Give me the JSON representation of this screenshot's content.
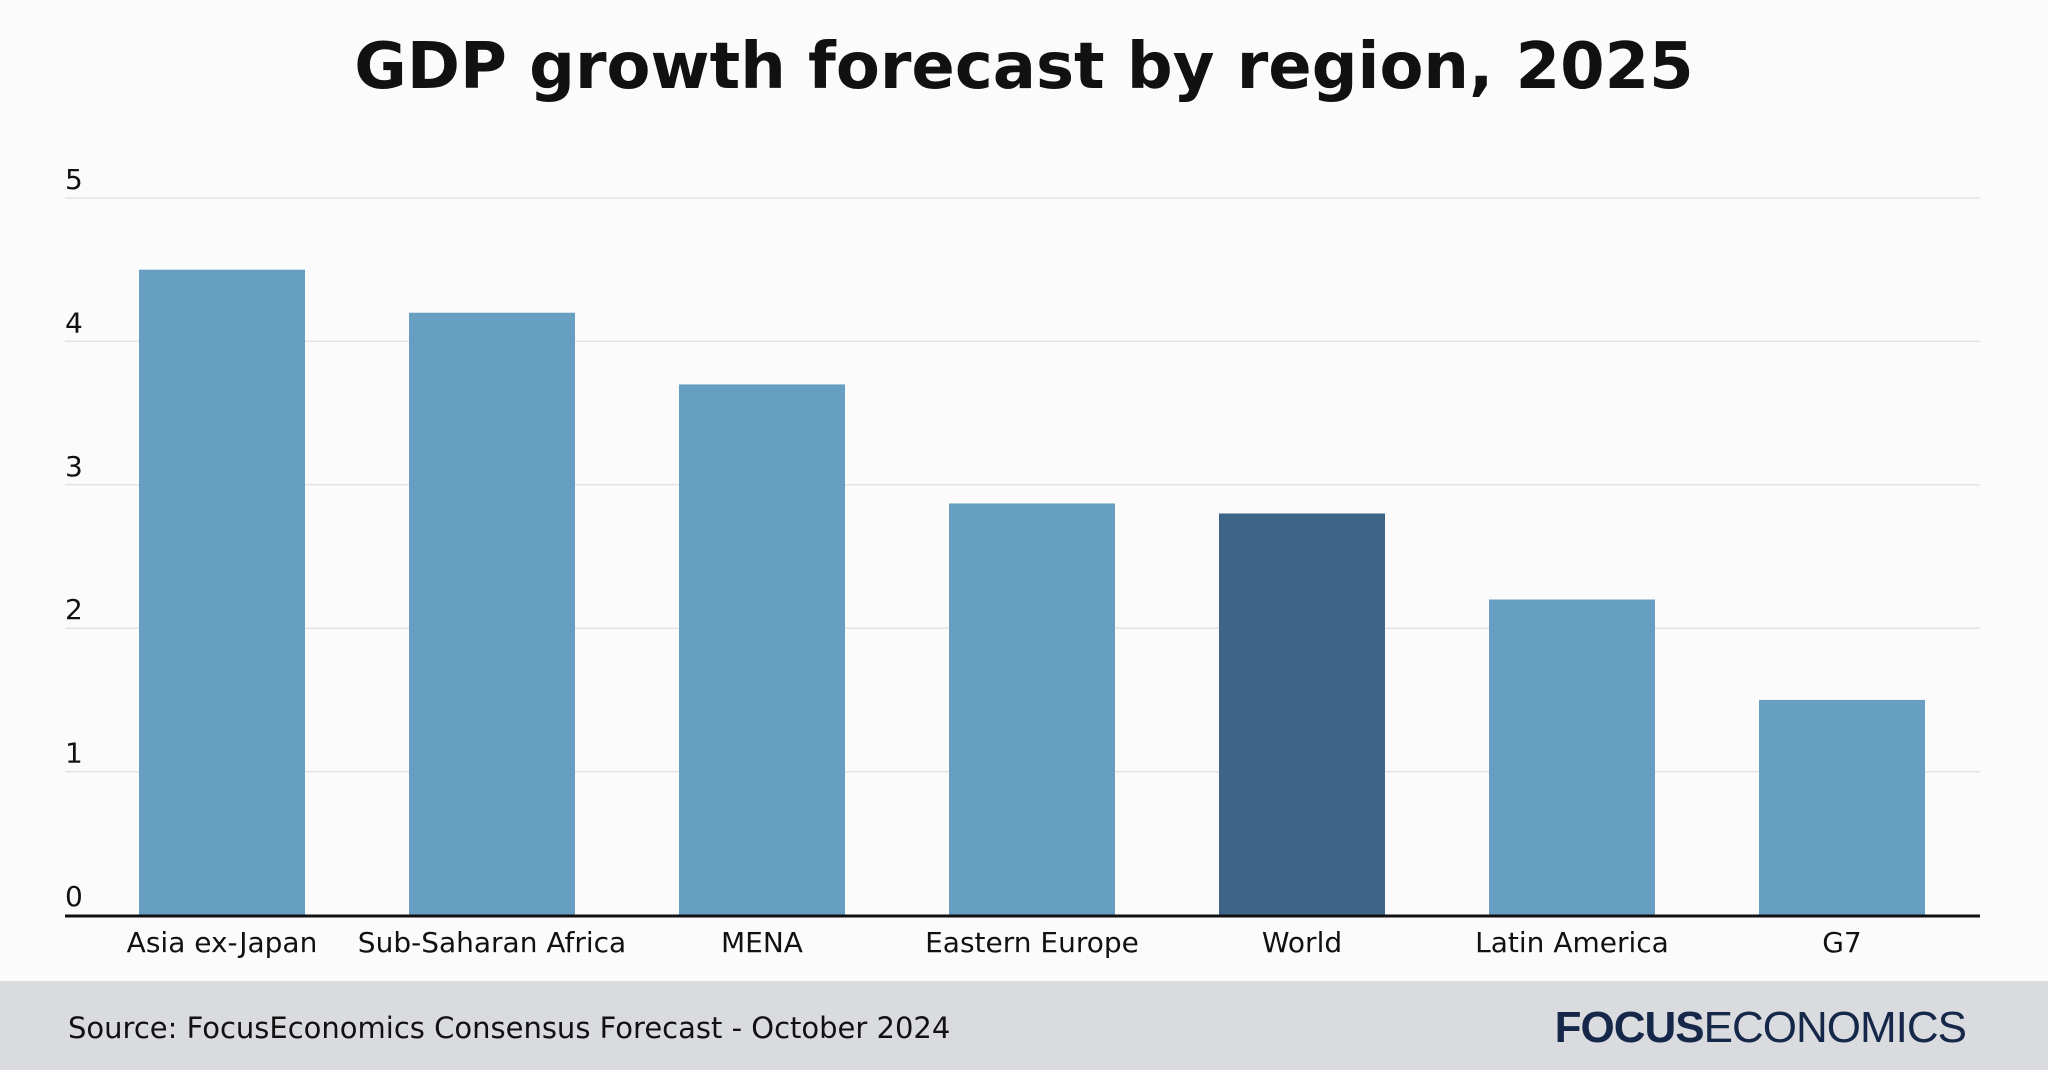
{
  "header": {
    "title": "GDP growth forecast by region, 2025"
  },
  "footer": {
    "source": "Source: FocusEconomics Consensus Forecast - October 2024",
    "logo_bold": "FOCUS",
    "logo_regular": "ECONOMICS"
  },
  "colors": {
    "bar": "#669fc2",
    "bar_highlight": "#3e6588",
    "grid": "#e3e3e3",
    "axis": "#111111"
  },
  "chart_data": {
    "type": "bar",
    "title": "GDP growth forecast by region, 2025",
    "xlabel": "",
    "ylabel": "",
    "categories": [
      "Asia ex-Japan",
      "Sub-Saharan Africa",
      "MENA",
      "Eastern Europe",
      "World",
      "Latin America",
      "G7"
    ],
    "values": [
      4.5,
      4.2,
      3.7,
      2.87,
      2.8,
      2.2,
      1.5
    ],
    "highlight": [
      "World"
    ],
    "ylim": [
      0,
      5
    ],
    "yticks": [
      0,
      1,
      2,
      3,
      4,
      5
    ],
    "grid": true,
    "legend": "none"
  }
}
